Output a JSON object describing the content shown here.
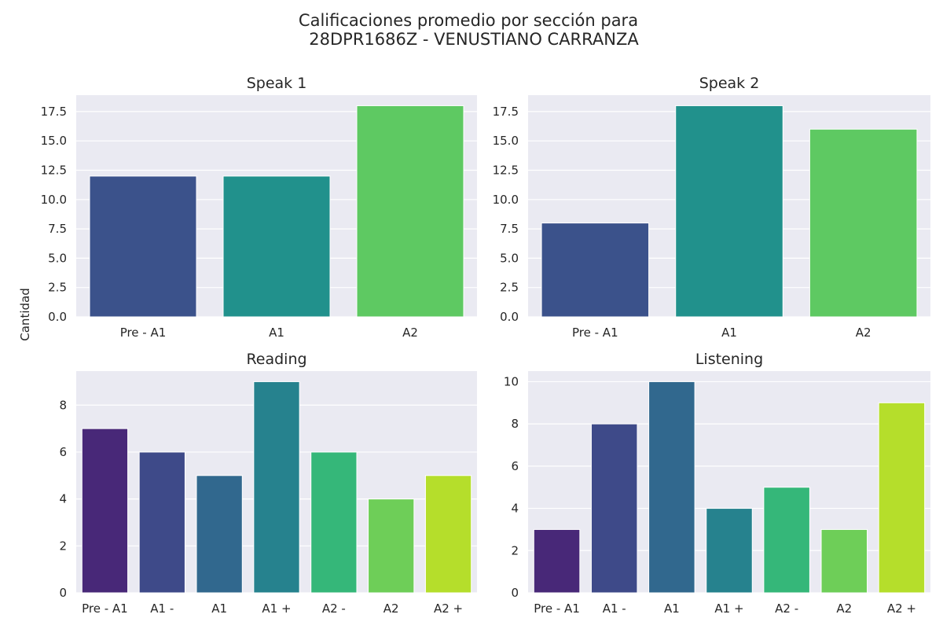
{
  "figure": {
    "title_line1": "Calificaciones promedio por sección para",
    "title_line2": "28DPR1686Z - VENUSTIANO CARRANZA",
    "ylabel": "Cantidad"
  },
  "colors": {
    "background": "#eaeaf2",
    "grid": "#ffffff",
    "viridis7": [
      "#482878",
      "#3e4a89",
      "#31688e",
      "#26828e",
      "#35b779",
      "#6ece58",
      "#b5de2b"
    ],
    "viridis3": [
      "#3b528b",
      "#21918c",
      "#5ec962"
    ]
  },
  "chart_data": [
    {
      "type": "bar",
      "title": "Speak 1",
      "categories": [
        "Pre - A1",
        "A1",
        "A2"
      ],
      "values": [
        12,
        12,
        18
      ],
      "ylim": [
        0,
        18.9
      ],
      "yticks": [
        0.0,
        2.5,
        5.0,
        7.5,
        10.0,
        12.5,
        15.0,
        17.5
      ],
      "ytick_labels": [
        "0.0",
        "2.5",
        "5.0",
        "7.5",
        "10.0",
        "12.5",
        "15.0",
        "17.5"
      ],
      "palette": "viridis3",
      "grid": true
    },
    {
      "type": "bar",
      "title": "Speak 2",
      "categories": [
        "Pre - A1",
        "A1",
        "A2"
      ],
      "values": [
        8,
        18,
        16
      ],
      "ylim": [
        0,
        18.9
      ],
      "yticks": [
        0.0,
        2.5,
        5.0,
        7.5,
        10.0,
        12.5,
        15.0,
        17.5
      ],
      "ytick_labels": [
        "0.0",
        "2.5",
        "5.0",
        "7.5",
        "10.0",
        "12.5",
        "15.0",
        "17.5"
      ],
      "palette": "viridis3",
      "grid": true
    },
    {
      "type": "bar",
      "title": "Reading",
      "categories": [
        "Pre - A1",
        "A1 -",
        "A1",
        "A1 +",
        "A2 -",
        "A2",
        "A2 +"
      ],
      "values": [
        7,
        6,
        5,
        9,
        6,
        4,
        5
      ],
      "ylim": [
        0,
        9.45
      ],
      "yticks": [
        0,
        2,
        4,
        6,
        8
      ],
      "ytick_labels": [
        "0",
        "2",
        "4",
        "6",
        "8"
      ],
      "palette": "viridis7",
      "grid": true
    },
    {
      "type": "bar",
      "title": "Listening",
      "categories": [
        "Pre - A1",
        "A1 -",
        "A1",
        "A1 +",
        "A2 -",
        "A2",
        "A2 +"
      ],
      "values": [
        3,
        8,
        10,
        4,
        5,
        3,
        9
      ],
      "ylim": [
        0,
        10.5
      ],
      "yticks": [
        0,
        2,
        4,
        6,
        8,
        10
      ],
      "ytick_labels": [
        "0",
        "2",
        "4",
        "6",
        "8",
        "10"
      ],
      "palette": "viridis7",
      "grid": true
    }
  ]
}
